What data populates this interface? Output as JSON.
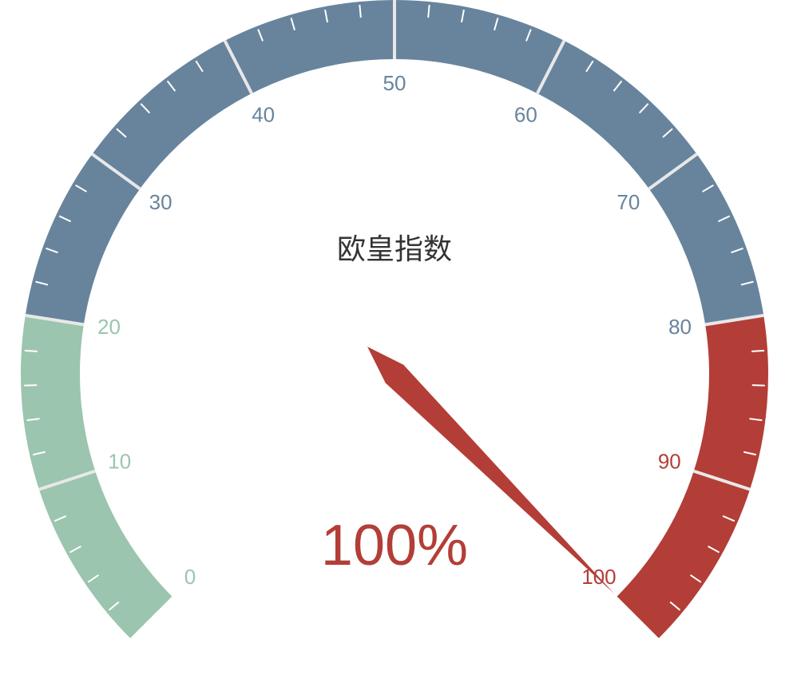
{
  "chart_data": {
    "type": "gauge",
    "title": "欧皇指数",
    "value": 100,
    "value_label": "100%",
    "min": 0,
    "max": 100,
    "tick_labels": [
      "0",
      "10",
      "20",
      "30",
      "40",
      "50",
      "60",
      "70",
      "80",
      "90",
      "100"
    ],
    "bands": [
      {
        "from": 0,
        "to": 20,
        "color": "#9BC5AE"
      },
      {
        "from": 20,
        "to": 80,
        "color": "#68849D"
      },
      {
        "from": 80,
        "to": 100,
        "color": "#B33E37"
      }
    ],
    "pointer_color": "#B33E37",
    "split_line_color": "#E8E8E8",
    "minor_tick_color": "#FFFFFF",
    "title_color": "#333333"
  }
}
